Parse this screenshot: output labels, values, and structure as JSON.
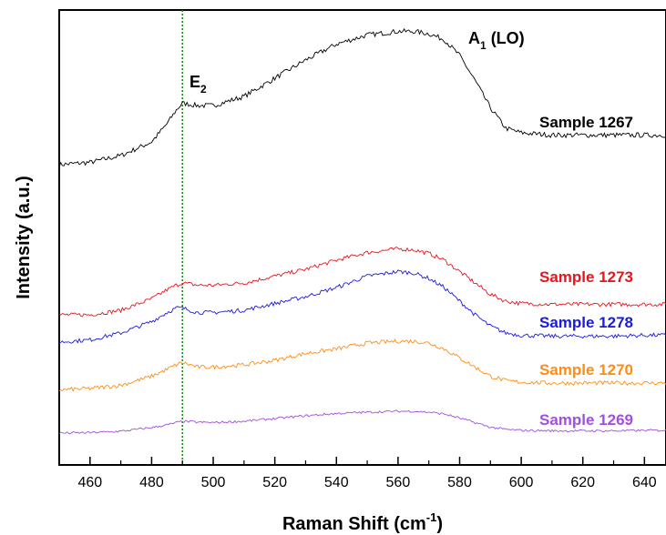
{
  "chart_data": {
    "type": "line",
    "xlabel": "Raman Shift (cm",
    "xlabel_sup": "-1",
    "xlabel_end": ")",
    "ylabel": "Intensity (a.u.)",
    "xlim": [
      450,
      647
    ],
    "ylim": [
      0,
      100
    ],
    "x_ticks": [
      460,
      480,
      500,
      520,
      540,
      560,
      580,
      600,
      620,
      640
    ],
    "y_ticks_labeled": false,
    "grid": false,
    "legend": "none",
    "annotations": [
      {
        "id": "e2",
        "main": "E",
        "sub": "2",
        "x": 490,
        "y": 83
      },
      {
        "id": "a1",
        "main": "A",
        "sub": "1",
        "suffix": " (LO)",
        "x": 567,
        "y": 97
      }
    ],
    "reference_line": {
      "x": 490,
      "color": "#1a8a1a",
      "style": "dotted"
    },
    "series": [
      {
        "name": "Sample 1267",
        "color": "#000000",
        "x": [
          450,
          460,
          470,
          480,
          485,
          488,
          490,
          495,
          500,
          510,
          520,
          530,
          540,
          550,
          560,
          565,
          570,
          575,
          580,
          585,
          590,
          595,
          600,
          610,
          620,
          630,
          640,
          647
        ],
        "values": [
          66,
          66.5,
          68,
          71,
          75,
          78,
          79.5,
          79,
          79,
          81,
          85,
          89,
          92.5,
          94.5,
          95.3,
          95.3,
          94.8,
          93.5,
          90,
          84.5,
          78.5,
          74,
          73,
          72.5,
          72.5,
          72.5,
          72.5,
          72.5
        ]
      },
      {
        "name": "Sample 1273",
        "color": "#e8141c",
        "x": [
          450,
          460,
          470,
          480,
          485,
          488,
          490,
          495,
          500,
          510,
          520,
          530,
          540,
          550,
          560,
          565,
          570,
          575,
          580,
          585,
          590,
          595,
          600,
          610,
          620,
          630,
          640,
          647
        ],
        "values": [
          33,
          33,
          34,
          36.5,
          38.5,
          39.5,
          40,
          39.5,
          39.5,
          40,
          41.5,
          43,
          45,
          46.7,
          47.5,
          47.3,
          46.5,
          45,
          42.5,
          40,
          37.5,
          36,
          35.5,
          35.3,
          35.3,
          35.3,
          35.3,
          35.3
        ]
      },
      {
        "name": "Sample 1278",
        "color": "#1a1ae0",
        "x": [
          450,
          460,
          470,
          480,
          485,
          488,
          490,
          495,
          500,
          510,
          520,
          530,
          540,
          550,
          560,
          565,
          570,
          575,
          580,
          585,
          590,
          595,
          600,
          610,
          620,
          630,
          640,
          647
        ],
        "values": [
          27,
          27.5,
          29,
          31.5,
          33.5,
          34.5,
          34.5,
          33.5,
          33.5,
          34,
          35.5,
          37,
          39,
          41.5,
          42.5,
          42.2,
          41,
          39,
          36,
          33,
          30.5,
          29,
          28.5,
          28.3,
          28.3,
          28.3,
          28.5,
          28.5
        ]
      },
      {
        "name": "Sample 1270",
        "color": "#ff8c14",
        "x": [
          450,
          460,
          470,
          480,
          485,
          488,
          490,
          495,
          500,
          510,
          520,
          530,
          540,
          550,
          560,
          565,
          570,
          575,
          580,
          585,
          590,
          595,
          600,
          610,
          620,
          630,
          640,
          647
        ],
        "values": [
          16.5,
          16.8,
          17.5,
          19.5,
          21,
          22,
          22.5,
          21.5,
          21.5,
          22,
          23,
          24.5,
          25.5,
          26.8,
          27.2,
          27.2,
          26.8,
          25.5,
          23.5,
          21.5,
          19.5,
          18.5,
          18.2,
          18,
          18,
          18,
          18,
          18
        ]
      },
      {
        "name": "Sample 1269",
        "color": "#a24ee0",
        "x": [
          450,
          460,
          470,
          480,
          485,
          488,
          490,
          495,
          500,
          510,
          520,
          530,
          540,
          550,
          560,
          565,
          570,
          575,
          580,
          585,
          590,
          595,
          600,
          610,
          620,
          630,
          640,
          647
        ],
        "values": [
          7,
          7.1,
          7.4,
          8.2,
          8.8,
          9.3,
          9.6,
          9.4,
          9.3,
          9.6,
          10.2,
          10.8,
          11.3,
          11.6,
          11.8,
          11.8,
          11.6,
          11.2,
          10.3,
          9.3,
          8.3,
          7.8,
          7.6,
          7.5,
          7.5,
          7.5,
          7.6,
          7.6
        ]
      }
    ]
  }
}
